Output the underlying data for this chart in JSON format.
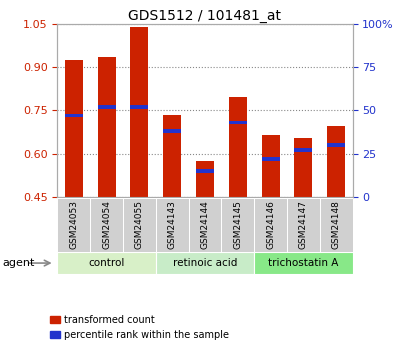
{
  "title": "GDS1512 / 101481_at",
  "samples": [
    "GSM24053",
    "GSM24054",
    "GSM24055",
    "GSM24143",
    "GSM24144",
    "GSM24145",
    "GSM24146",
    "GSM24147",
    "GSM24148"
  ],
  "transformed_count": [
    0.925,
    0.935,
    1.04,
    0.735,
    0.575,
    0.795,
    0.665,
    0.655,
    0.695
  ],
  "percentile_rank": [
    47,
    52,
    52,
    38,
    15,
    43,
    22,
    27,
    30
  ],
  "groups": [
    {
      "label": "control",
      "indices": [
        0,
        1,
        2
      ],
      "color": "#d8f0c8"
    },
    {
      "label": "retinoic acid",
      "indices": [
        3,
        4,
        5
      ],
      "color": "#c8ecc8"
    },
    {
      "label": "trichostatin A",
      "indices": [
        6,
        7,
        8
      ],
      "color": "#88e888"
    }
  ],
  "ylim_left": [
    0.45,
    1.05
  ],
  "ylim_right": [
    0,
    100
  ],
  "yticks_left": [
    0.45,
    0.6,
    0.75,
    0.9,
    1.05
  ],
  "yticks_right": [
    0,
    25,
    50,
    75,
    100
  ],
  "ytick_labels_right": [
    "0",
    "25",
    "50",
    "75",
    "100%"
  ],
  "bar_color": "#cc2200",
  "percentile_color": "#2233cc",
  "bar_width": 0.55,
  "percentile_bar_height": 0.013,
  "legend_items": [
    "transformed count",
    "percentile rank within the sample"
  ],
  "legend_colors": [
    "#cc2200",
    "#2233cc"
  ],
  "agent_label": "agent",
  "left_tick_color": "#cc2200",
  "right_tick_color": "#2233cc",
  "grid_color": "#888888",
  "background_color": "#ffffff",
  "tick_cell_bg": "#d0d0d0"
}
